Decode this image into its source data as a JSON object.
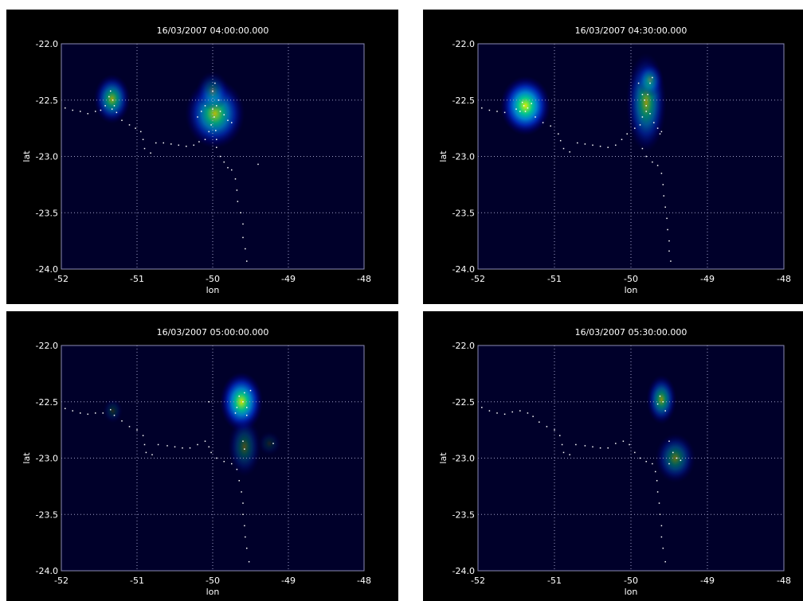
{
  "chart_data": [
    {
      "type": "heatmap",
      "title": "16/03/2007 04:00:00.000",
      "xlabel": "lon",
      "ylabel": "lat",
      "xlim": [
        -52,
        -48
      ],
      "ylim": [
        -24,
        -22
      ],
      "xticks": [
        -52,
        -51,
        -50,
        -49,
        -48
      ],
      "xtick_labels": [
        "-52",
        "-51",
        "-50",
        "-49",
        "-48"
      ],
      "yticks": [
        -24,
        -23.5,
        -23,
        -22.5,
        -22
      ],
      "ytick_labels": [
        "-24.0",
        "-23.5",
        "-23.0",
        "-22.5",
        "-22.0"
      ],
      "grid": true,
      "colors": {
        "background": "#00002a",
        "frame": "#8c8cb4",
        "grid": "#a0a0c8",
        "points": "#ffffff"
      },
      "density_blobs": [
        {
          "x": -51.33,
          "y": -22.49,
          "sx": 0.11,
          "sy": 0.1,
          "peak": 0.62
        },
        {
          "x": -49.97,
          "y": -22.62,
          "sx": 0.18,
          "sy": 0.14,
          "peak": 0.72
        },
        {
          "x": -50.0,
          "y": -22.42,
          "sx": 0.1,
          "sy": 0.08,
          "peak": 0.3
        }
      ],
      "points": [
        [
          -51.95,
          -22.57
        ],
        [
          -51.85,
          -22.59
        ],
        [
          -51.75,
          -22.6
        ],
        [
          -51.65,
          -22.62
        ],
        [
          -51.55,
          -22.6
        ],
        [
          -51.48,
          -22.59
        ],
        [
          -51.42,
          -22.55
        ],
        [
          -51.37,
          -22.47
        ],
        [
          -51.35,
          -22.42
        ],
        [
          -51.32,
          -22.5
        ],
        [
          -51.3,
          -22.55
        ],
        [
          -51.33,
          -22.58
        ],
        [
          -51.27,
          -22.61
        ],
        [
          -51.2,
          -22.68
        ],
        [
          -51.1,
          -22.72
        ],
        [
          -51.02,
          -22.75
        ],
        [
          -50.95,
          -22.78
        ],
        [
          -50.92,
          -22.85
        ],
        [
          -50.9,
          -22.93
        ],
        [
          -50.82,
          -22.97
        ],
        [
          -50.75,
          -22.88
        ],
        [
          -50.65,
          -22.88
        ],
        [
          -50.55,
          -22.89
        ],
        [
          -50.45,
          -22.9
        ],
        [
          -50.35,
          -22.91
        ],
        [
          -50.25,
          -22.9
        ],
        [
          -50.18,
          -22.87
        ],
        [
          -50.1,
          -22.85
        ],
        [
          -50.05,
          -22.78
        ],
        [
          -50.02,
          -22.72
        ],
        [
          -49.98,
          -22.65
        ],
        [
          -50.0,
          -22.58
        ],
        [
          -49.95,
          -22.55
        ],
        [
          -49.9,
          -22.6
        ],
        [
          -49.85,
          -22.63
        ],
        [
          -49.8,
          -22.68
        ],
        [
          -49.75,
          -22.7
        ],
        [
          -50.1,
          -22.55
        ],
        [
          -50.15,
          -22.6
        ],
        [
          -50.2,
          -22.65
        ],
        [
          -49.97,
          -22.35
        ],
        [
          -50.0,
          -22.42
        ],
        [
          -49.92,
          -22.5
        ],
        [
          -49.96,
          -22.77
        ],
        [
          -49.95,
          -22.85
        ],
        [
          -49.95,
          -22.92
        ],
        [
          -49.9,
          -23.0
        ],
        [
          -49.85,
          -23.05
        ],
        [
          -49.8,
          -23.1
        ],
        [
          -49.75,
          -23.12
        ],
        [
          -49.7,
          -23.2
        ],
        [
          -49.68,
          -23.3
        ],
        [
          -49.67,
          -23.4
        ],
        [
          -49.63,
          -23.5
        ],
        [
          -49.6,
          -23.6
        ],
        [
          -49.6,
          -23.72
        ],
        [
          -49.57,
          -23.82
        ],
        [
          -49.55,
          -23.93
        ],
        [
          -49.4,
          -23.07
        ]
      ]
    },
    {
      "type": "heatmap",
      "title": "16/03/2007 04:30:00.000",
      "xlabel": "lon",
      "ylabel": "lat",
      "xlim": [
        -52,
        -48
      ],
      "ylim": [
        -24,
        -22
      ],
      "xticks": [
        -52,
        -51,
        -50,
        -49,
        -48
      ],
      "xtick_labels": [
        "-52",
        "-51",
        "-50",
        "-49",
        "-48"
      ],
      "yticks": [
        -24,
        -23.5,
        -23,
        -22.5,
        -22
      ],
      "ytick_labels": [
        "-24.0",
        "-23.5",
        "-23.0",
        "-22.5",
        "-22.0"
      ],
      "grid": true,
      "colors": {
        "background": "#00002a",
        "frame": "#8c8cb4",
        "grid": "#a0a0c8",
        "points": "#ffffff"
      },
      "density_blobs": [
        {
          "x": -51.38,
          "y": -22.55,
          "sx": 0.15,
          "sy": 0.12,
          "peak": 0.9
        },
        {
          "x": -49.8,
          "y": -22.52,
          "sx": 0.12,
          "sy": 0.2,
          "peak": 0.58
        },
        {
          "x": -49.75,
          "y": -22.32,
          "sx": 0.08,
          "sy": 0.07,
          "peak": 0.32
        }
      ],
      "points": [
        [
          -51.95,
          -22.57
        ],
        [
          -51.85,
          -22.59
        ],
        [
          -51.75,
          -22.6
        ],
        [
          -51.65,
          -22.61
        ],
        [
          -51.5,
          -22.58
        ],
        [
          -51.42,
          -22.52
        ],
        [
          -51.4,
          -22.55
        ],
        [
          -51.35,
          -22.57
        ],
        [
          -51.3,
          -22.53
        ],
        [
          -51.38,
          -22.6
        ],
        [
          -51.45,
          -22.6
        ],
        [
          -51.25,
          -22.65
        ],
        [
          -51.15,
          -22.7
        ],
        [
          -51.05,
          -22.73
        ],
        [
          -50.95,
          -22.8
        ],
        [
          -50.92,
          -22.86
        ],
        [
          -50.88,
          -22.93
        ],
        [
          -50.8,
          -22.96
        ],
        [
          -50.7,
          -22.88
        ],
        [
          -50.6,
          -22.89
        ],
        [
          -50.5,
          -22.9
        ],
        [
          -50.4,
          -22.91
        ],
        [
          -50.3,
          -22.92
        ],
        [
          -50.2,
          -22.9
        ],
        [
          -50.12,
          -22.85
        ],
        [
          -50.05,
          -22.8
        ],
        [
          -49.95,
          -22.75
        ],
        [
          -49.88,
          -22.72
        ],
        [
          -49.85,
          -22.65
        ],
        [
          -49.8,
          -22.6
        ],
        [
          -49.82,
          -22.5
        ],
        [
          -49.78,
          -22.45
        ],
        [
          -49.75,
          -22.35
        ],
        [
          -49.72,
          -22.3
        ],
        [
          -49.85,
          -22.45
        ],
        [
          -49.8,
          -22.55
        ],
        [
          -49.75,
          -22.62
        ],
        [
          -49.7,
          -22.7
        ],
        [
          -49.65,
          -22.75
        ],
        [
          -49.6,
          -22.78
        ],
        [
          -49.62,
          -22.8
        ],
        [
          -49.9,
          -22.35
        ],
        [
          -49.85,
          -22.93
        ],
        [
          -49.8,
          -23.0
        ],
        [
          -49.72,
          -23.05
        ],
        [
          -49.65,
          -23.08
        ],
        [
          -49.6,
          -23.15
        ],
        [
          -49.58,
          -23.25
        ],
        [
          -49.57,
          -23.35
        ],
        [
          -49.55,
          -23.45
        ],
        [
          -49.53,
          -23.55
        ],
        [
          -49.52,
          -23.65
        ],
        [
          -49.5,
          -23.75
        ],
        [
          -49.5,
          -23.84
        ],
        [
          -49.48,
          -23.93
        ]
      ]
    },
    {
      "type": "heatmap",
      "title": "16/03/2007 05:00:00.000",
      "xlabel": "lon",
      "ylabel": "lat",
      "xlim": [
        -52,
        -48
      ],
      "ylim": [
        -24,
        -22
      ],
      "xticks": [
        -52,
        -51,
        -50,
        -49,
        -48
      ],
      "xtick_labels": [
        "-52",
        "-51",
        "-50",
        "-49",
        "-48"
      ],
      "yticks": [
        -24,
        -23.5,
        -23,
        -22.5,
        -22
      ],
      "ytick_labels": [
        "-24.0",
        "-23.5",
        "-23.0",
        "-22.5",
        "-22.0"
      ],
      "grid": true,
      "colors": {
        "background": "#00002a",
        "frame": "#8c8cb4",
        "grid": "#a0a0c8",
        "points": "#ffffff"
      },
      "density_blobs": [
        {
          "x": -49.62,
          "y": -22.5,
          "sx": 0.13,
          "sy": 0.12,
          "peak": 0.85
        },
        {
          "x": -49.58,
          "y": -22.9,
          "sx": 0.1,
          "sy": 0.12,
          "peak": 0.3
        },
        {
          "x": -51.32,
          "y": -22.58,
          "sx": 0.06,
          "sy": 0.05,
          "peak": 0.15
        },
        {
          "x": -49.25,
          "y": -22.87,
          "sx": 0.07,
          "sy": 0.05,
          "peak": 0.12
        }
      ],
      "points": [
        [
          -51.95,
          -22.56
        ],
        [
          -51.85,
          -22.58
        ],
        [
          -51.75,
          -22.6
        ],
        [
          -51.65,
          -22.61
        ],
        [
          -51.55,
          -22.6
        ],
        [
          -51.45,
          -22.6
        ],
        [
          -51.35,
          -22.57
        ],
        [
          -51.3,
          -22.62
        ],
        [
          -51.2,
          -22.67
        ],
        [
          -51.1,
          -22.72
        ],
        [
          -51.0,
          -22.75
        ],
        [
          -50.92,
          -22.8
        ],
        [
          -50.9,
          -22.88
        ],
        [
          -50.88,
          -22.95
        ],
        [
          -50.8,
          -22.97
        ],
        [
          -50.72,
          -22.88
        ],
        [
          -50.6,
          -22.89
        ],
        [
          -50.5,
          -22.9
        ],
        [
          -50.4,
          -22.91
        ],
        [
          -50.3,
          -22.91
        ],
        [
          -50.2,
          -22.88
        ],
        [
          -50.1,
          -22.85
        ],
        [
          -50.05,
          -22.9
        ],
        [
          -50.02,
          -22.95
        ],
        [
          -49.95,
          -23.0
        ],
        [
          -49.85,
          -23.03
        ],
        [
          -49.75,
          -23.05
        ],
        [
          -49.68,
          -23.1
        ],
        [
          -49.65,
          -23.2
        ],
        [
          -49.62,
          -23.3
        ],
        [
          -49.6,
          -23.4
        ],
        [
          -49.6,
          -23.5
        ],
        [
          -49.58,
          -23.6
        ],
        [
          -49.57,
          -23.7
        ],
        [
          -49.55,
          -23.8
        ],
        [
          -49.52,
          -23.92
        ],
        [
          -49.65,
          -22.45
        ],
        [
          -49.6,
          -22.5
        ],
        [
          -49.55,
          -22.55
        ],
        [
          -49.58,
          -22.42
        ],
        [
          -49.68,
          -22.55
        ],
        [
          -49.5,
          -22.4
        ],
        [
          -49.7,
          -22.6
        ],
        [
          -49.55,
          -22.62
        ],
        [
          -49.6,
          -22.85
        ],
        [
          -49.58,
          -22.92
        ],
        [
          -49.2,
          -22.87
        ],
        [
          -50.05,
          -22.5
        ]
      ]
    },
    {
      "type": "heatmap",
      "title": "16/03/2007 05:30:00.000",
      "xlabel": "lon",
      "ylabel": "lat",
      "xlim": [
        -52,
        -48
      ],
      "ylim": [
        -24,
        -22
      ],
      "xticks": [
        -52,
        -51,
        -50,
        -49,
        -48
      ],
      "xtick_labels": [
        "-52",
        "-51",
        "-50",
        "-49",
        "-48"
      ],
      "yticks": [
        -24,
        -23.5,
        -23,
        -22.5,
        -22
      ],
      "ytick_labels": [
        "-24.0",
        "-23.5",
        "-23.0",
        "-22.5",
        "-22.0"
      ],
      "grid": true,
      "colors": {
        "background": "#00002a",
        "frame": "#8c8cb4",
        "grid": "#a0a0c8",
        "points": "#ffffff"
      },
      "density_blobs": [
        {
          "x": -49.6,
          "y": -22.48,
          "sx": 0.09,
          "sy": 0.1,
          "peak": 0.55
        },
        {
          "x": -49.42,
          "y": -23.0,
          "sx": 0.12,
          "sy": 0.1,
          "peak": 0.42
        }
      ],
      "points": [
        [
          -51.95,
          -22.55
        ],
        [
          -51.85,
          -22.58
        ],
        [
          -51.75,
          -22.6
        ],
        [
          -51.65,
          -22.61
        ],
        [
          -51.55,
          -22.59
        ],
        [
          -51.45,
          -22.58
        ],
        [
          -51.35,
          -22.6
        ],
        [
          -51.28,
          -22.63
        ],
        [
          -51.2,
          -22.68
        ],
        [
          -51.1,
          -22.72
        ],
        [
          -51.0,
          -22.75
        ],
        [
          -50.93,
          -22.8
        ],
        [
          -50.9,
          -22.88
        ],
        [
          -50.88,
          -22.95
        ],
        [
          -50.8,
          -22.97
        ],
        [
          -50.72,
          -22.88
        ],
        [
          -50.6,
          -22.89
        ],
        [
          -50.5,
          -22.9
        ],
        [
          -50.4,
          -22.91
        ],
        [
          -50.3,
          -22.91
        ],
        [
          -50.2,
          -22.87
        ],
        [
          -50.1,
          -22.85
        ],
        [
          -50.02,
          -22.88
        ],
        [
          -49.95,
          -22.95
        ],
        [
          -49.88,
          -23.0
        ],
        [
          -49.8,
          -23.03
        ],
        [
          -49.72,
          -23.05
        ],
        [
          -49.68,
          -23.12
        ],
        [
          -49.66,
          -23.2
        ],
        [
          -49.65,
          -23.3
        ],
        [
          -49.63,
          -23.4
        ],
        [
          -49.62,
          -23.5
        ],
        [
          -49.6,
          -23.6
        ],
        [
          -49.6,
          -23.7
        ],
        [
          -49.58,
          -23.8
        ],
        [
          -49.55,
          -23.92
        ],
        [
          -49.62,
          -22.45
        ],
        [
          -49.58,
          -22.5
        ],
        [
          -49.65,
          -22.52
        ],
        [
          -49.55,
          -22.58
        ],
        [
          -49.5,
          -22.85
        ],
        [
          -49.45,
          -22.95
        ],
        [
          -49.4,
          -23.0
        ],
        [
          -49.35,
          -23.02
        ],
        [
          -49.5,
          -23.05
        ]
      ]
    }
  ]
}
